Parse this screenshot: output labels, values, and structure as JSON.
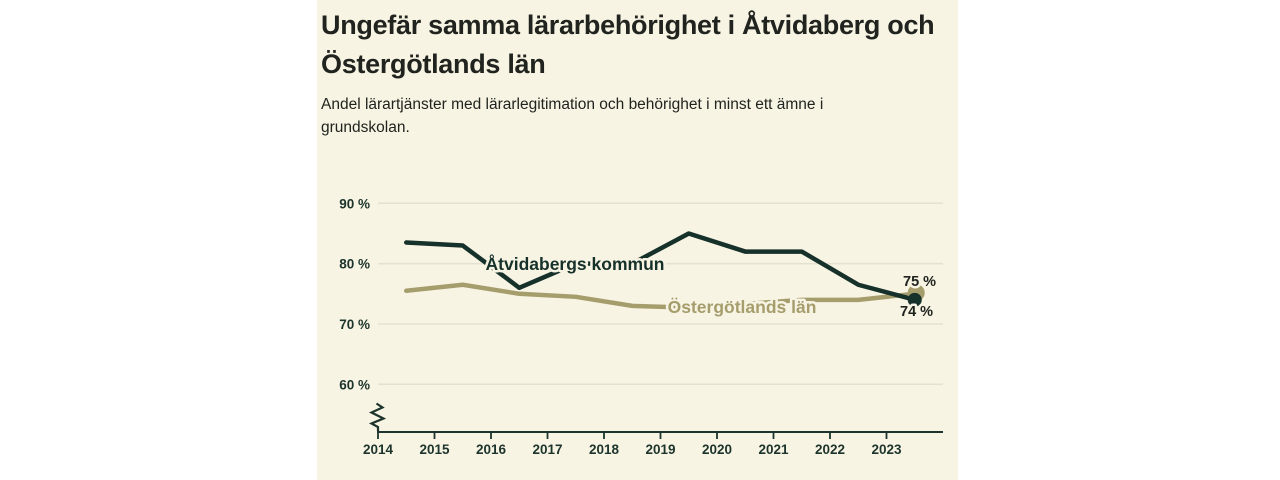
{
  "page": {
    "background_color": "#ffffff",
    "card_background_color": "#f8f4e4"
  },
  "chart_data": {
    "type": "line",
    "title": "Ungefär samma lärarbehörighet i Åtvidaberg och Östergötlands län",
    "subtitle": "Andel lärartjänster med lärarlegitimation och behörighet i minst ett ämne i grundskolan.",
    "x_tick_labels": [
      "2014",
      "2015",
      "2016",
      "2017",
      "2018",
      "2019",
      "2020",
      "2021",
      "2022",
      "2023"
    ],
    "points_between_ticks": true,
    "y_axis": {
      "unit": "%",
      "range_top": 90,
      "axis_break": true,
      "grid": true,
      "ticks": [
        {
          "value": 90,
          "label": "90 %"
        },
        {
          "value": 80,
          "label": "80 %"
        },
        {
          "value": 70,
          "label": "70 %"
        },
        {
          "value": 60,
          "label": "60 %"
        }
      ]
    },
    "series": [
      {
        "name": "Åtvidabergs kommun",
        "color": "#16302a",
        "values": [
          83.5,
          83,
          76,
          80,
          80,
          85,
          82,
          82,
          76.5,
          74
        ],
        "end_label": "74 %"
      },
      {
        "name": "Östergötlands län",
        "color": "#a69d6d",
        "values": [
          75.5,
          76.5,
          75,
          74.5,
          73,
          72.7,
          73.3,
          74,
          74,
          75
        ],
        "end_label": "75 %"
      }
    ],
    "legend_position": "inline-labels",
    "colors": {
      "axis": "#1c342c",
      "grid": "#e5e1d1",
      "text": "#20231e",
      "halo": "#f8f4e4"
    }
  }
}
